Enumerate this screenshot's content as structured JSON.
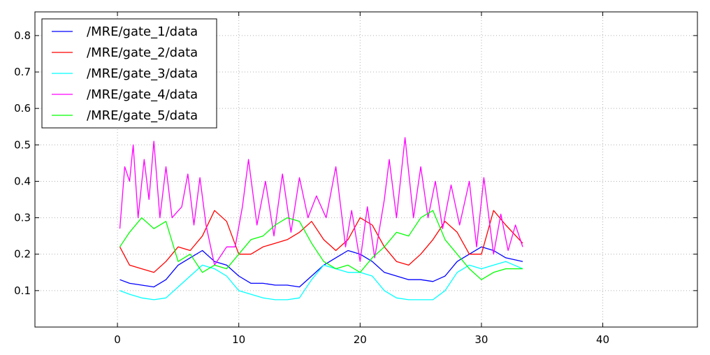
{
  "chart_data": {
    "type": "line",
    "title": "",
    "xlabel": "",
    "ylabel": "",
    "xlim": [
      -6.8,
      47.8
    ],
    "ylim": [
      0.0,
      0.865
    ],
    "xticks": [
      0,
      10,
      20,
      30,
      40
    ],
    "yticks": [
      0.1,
      0.2,
      0.3,
      0.4,
      0.5,
      0.6,
      0.7,
      0.8
    ],
    "grid": true,
    "legend_position": "top-left",
    "colors": [
      "#0000ff",
      "#ff0000",
      "#00ffff",
      "#ff00ff",
      "#00ff00"
    ],
    "series": [
      {
        "name": "/MRE/gate_1/data",
        "x": [
          0.2,
          1,
          2,
          3,
          4,
          5,
          6,
          7,
          8,
          9,
          10,
          11,
          12,
          13,
          14,
          15,
          16,
          17,
          18,
          19,
          20,
          21,
          22,
          23,
          24,
          25,
          26,
          27,
          28,
          29,
          30,
          31,
          32,
          33.4
        ],
        "y": [
          0.13,
          0.12,
          0.115,
          0.11,
          0.13,
          0.17,
          0.19,
          0.21,
          0.18,
          0.17,
          0.14,
          0.12,
          0.12,
          0.115,
          0.115,
          0.11,
          0.14,
          0.17,
          0.19,
          0.21,
          0.2,
          0.18,
          0.15,
          0.14,
          0.13,
          0.13,
          0.125,
          0.14,
          0.18,
          0.2,
          0.22,
          0.21,
          0.19,
          0.18
        ]
      },
      {
        "name": "/MRE/gate_2/data",
        "x": [
          0.2,
          1,
          2,
          3,
          4,
          5,
          6,
          7,
          8,
          9,
          10,
          11,
          12,
          13,
          14,
          15,
          16,
          17,
          18,
          19,
          20,
          21,
          22,
          23,
          24,
          25,
          26,
          27,
          28,
          29,
          30,
          31,
          32,
          33.4
        ],
        "y": [
          0.22,
          0.17,
          0.16,
          0.15,
          0.18,
          0.22,
          0.21,
          0.25,
          0.32,
          0.29,
          0.2,
          0.2,
          0.22,
          0.23,
          0.24,
          0.26,
          0.29,
          0.24,
          0.21,
          0.24,
          0.3,
          0.28,
          0.22,
          0.18,
          0.17,
          0.2,
          0.24,
          0.29,
          0.26,
          0.2,
          0.2,
          0.32,
          0.28,
          0.23
        ]
      },
      {
        "name": "/MRE/gate_3/data",
        "x": [
          0.2,
          1,
          2,
          3,
          4,
          5,
          6,
          7,
          8,
          9,
          10,
          11,
          12,
          13,
          14,
          15,
          16,
          17,
          18,
          19,
          20,
          21,
          22,
          23,
          24,
          25,
          26,
          27,
          28,
          29,
          30,
          31,
          32,
          33.4
        ],
        "y": [
          0.1,
          0.09,
          0.08,
          0.075,
          0.08,
          0.11,
          0.14,
          0.17,
          0.16,
          0.14,
          0.1,
          0.09,
          0.08,
          0.075,
          0.075,
          0.08,
          0.13,
          0.17,
          0.16,
          0.15,
          0.15,
          0.14,
          0.1,
          0.08,
          0.075,
          0.075,
          0.075,
          0.1,
          0.15,
          0.17,
          0.16,
          0.17,
          0.18,
          0.16
        ]
      },
      {
        "name": "/MRE/gate_4/data",
        "x": [
          0.2,
          0.6,
          1,
          1.3,
          1.7,
          2.2,
          2.6,
          3,
          3.5,
          4,
          4.5,
          5.3,
          5.8,
          6.3,
          6.8,
          7.3,
          8,
          9,
          9.7,
          10.3,
          10.8,
          11.5,
          12.2,
          12.9,
          13.6,
          14.3,
          15,
          15.7,
          16.4,
          17.2,
          18,
          18.8,
          19.3,
          20,
          20.6,
          21.2,
          22,
          22.4,
          23,
          23.7,
          24.4,
          25,
          25.6,
          26.2,
          26.8,
          27.5,
          28.2,
          29,
          29.6,
          30.2,
          31,
          31.6,
          32.2,
          32.8,
          33.4
        ],
        "y": [
          0.27,
          0.44,
          0.4,
          0.5,
          0.3,
          0.46,
          0.35,
          0.51,
          0.3,
          0.44,
          0.3,
          0.33,
          0.42,
          0.28,
          0.41,
          0.28,
          0.17,
          0.22,
          0.22,
          0.33,
          0.46,
          0.28,
          0.4,
          0.25,
          0.42,
          0.26,
          0.41,
          0.3,
          0.36,
          0.3,
          0.44,
          0.22,
          0.32,
          0.18,
          0.33,
          0.19,
          0.35,
          0.46,
          0.3,
          0.52,
          0.3,
          0.44,
          0.3,
          0.4,
          0.27,
          0.39,
          0.28,
          0.4,
          0.22,
          0.41,
          0.2,
          0.31,
          0.21,
          0.28,
          0.22
        ]
      },
      {
        "name": "/MRE/gate_5/data",
        "x": [
          0.2,
          1,
          2,
          3,
          4,
          5,
          6,
          7,
          8,
          9,
          10,
          11,
          12,
          13,
          14,
          15,
          16,
          17,
          18,
          19,
          20,
          21,
          22,
          23,
          24,
          25,
          26,
          27,
          28,
          29,
          30,
          31,
          32,
          33.4
        ],
        "y": [
          0.22,
          0.26,
          0.3,
          0.27,
          0.29,
          0.18,
          0.2,
          0.15,
          0.17,
          0.16,
          0.2,
          0.24,
          0.25,
          0.28,
          0.3,
          0.29,
          0.23,
          0.18,
          0.16,
          0.17,
          0.15,
          0.19,
          0.22,
          0.26,
          0.25,
          0.3,
          0.32,
          0.24,
          0.2,
          0.16,
          0.13,
          0.15,
          0.16,
          0.16
        ]
      }
    ]
  }
}
